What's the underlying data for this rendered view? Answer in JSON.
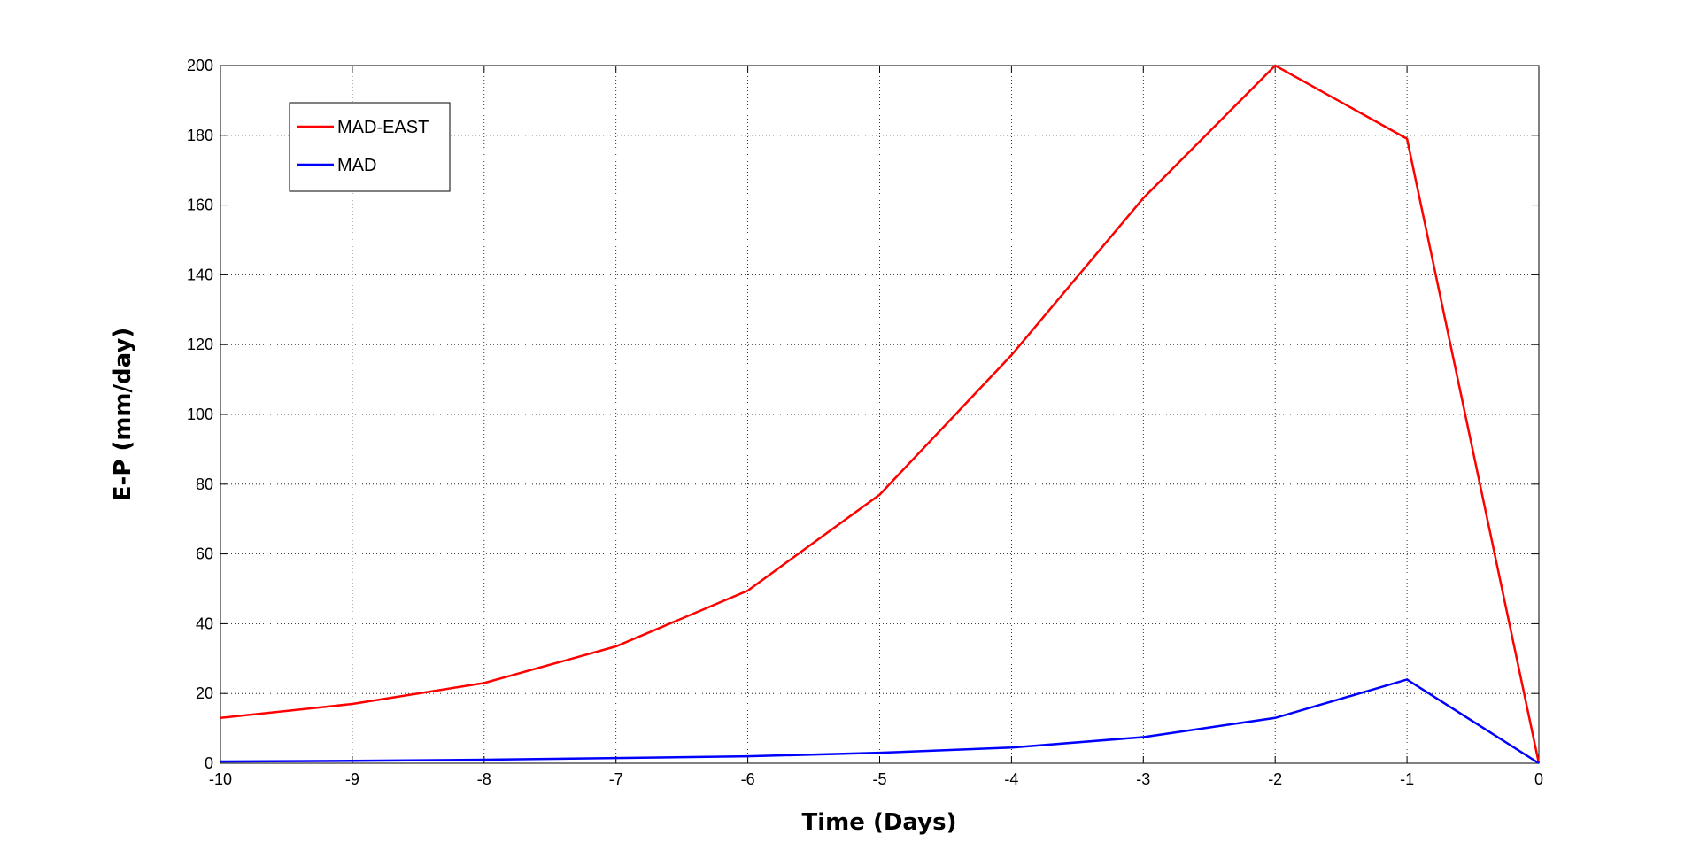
{
  "chart_data": {
    "type": "line",
    "x": [
      -10,
      -9,
      -8,
      -7,
      -6,
      -5,
      -4,
      -3,
      -2,
      -1,
      0
    ],
    "series": [
      {
        "name": "MAD-EAST",
        "color": "#ff0000",
        "values": [
          13,
          17,
          23,
          33.5,
          49.5,
          77,
          117,
          162,
          200,
          179,
          0
        ]
      },
      {
        "name": "MAD",
        "color": "#0000ff",
        "values": [
          0.5,
          0.7,
          1,
          1.5,
          2,
          3,
          4.5,
          7.5,
          13,
          24,
          0
        ]
      }
    ],
    "xlabel": "Time (Days)",
    "ylabel": "E-P (mm/day)",
    "xlim": [
      -10,
      0
    ],
    "xticks": [
      -10,
      -9,
      -8,
      -7,
      -6,
      -5,
      -4,
      -3,
      -2,
      -1,
      0
    ],
    "ylim": [
      0,
      200
    ],
    "yticks": [
      0,
      20,
      40,
      60,
      80,
      100,
      120,
      140,
      160,
      180,
      200
    ],
    "grid": true,
    "legend": "upper left"
  }
}
